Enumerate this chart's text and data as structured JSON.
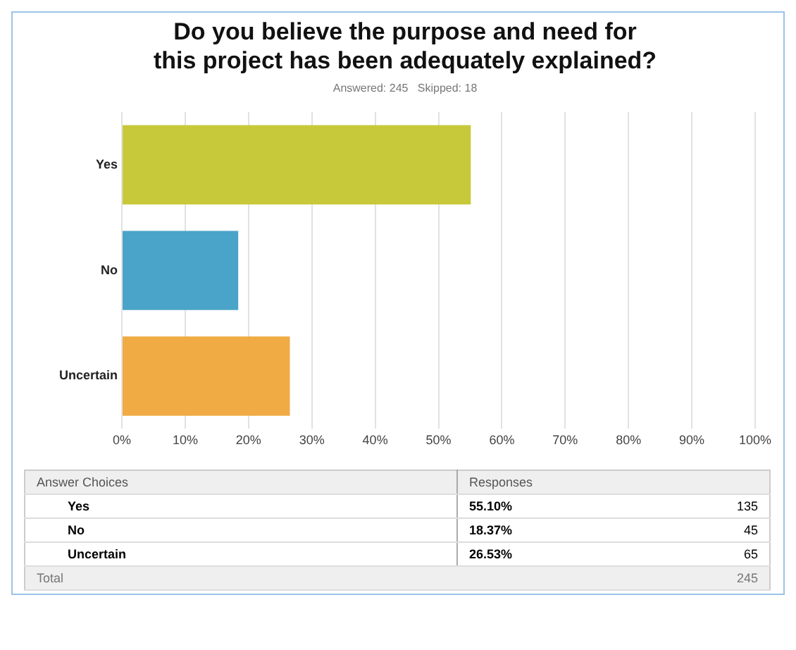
{
  "chart_data": {
    "type": "bar",
    "orientation": "horizontal",
    "title": "Do you believe the purpose and need for\nthis project has been adequately explained?",
    "subtitle": "Answered: 245   Skipped: 18",
    "categories": [
      "Yes",
      "No",
      "Uncertain"
    ],
    "values": [
      55.1,
      18.37,
      26.53
    ],
    "colors": [
      "#c8c93a",
      "#4aa3c8",
      "#f0ab45"
    ],
    "xlim": [
      0,
      100
    ],
    "xticks": [
      {
        "value": 0,
        "label": "0%"
      },
      {
        "value": 10,
        "label": "10%"
      },
      {
        "value": 20,
        "label": "20%"
      },
      {
        "value": 30,
        "label": "30%"
      },
      {
        "value": 40,
        "label": "40%"
      },
      {
        "value": 50,
        "label": "50%"
      },
      {
        "value": 60,
        "label": "60%"
      },
      {
        "value": 70,
        "label": "70%"
      },
      {
        "value": 80,
        "label": "80%"
      },
      {
        "value": 90,
        "label": "90%"
      },
      {
        "value": 100,
        "label": "100%"
      }
    ],
    "grid": "x",
    "annotations": [
      "Answer Choices",
      "Responses",
      "55.10%",
      "18.37%",
      "26.53%",
      "135",
      "45",
      "65",
      "Total",
      "245"
    ]
  }
}
